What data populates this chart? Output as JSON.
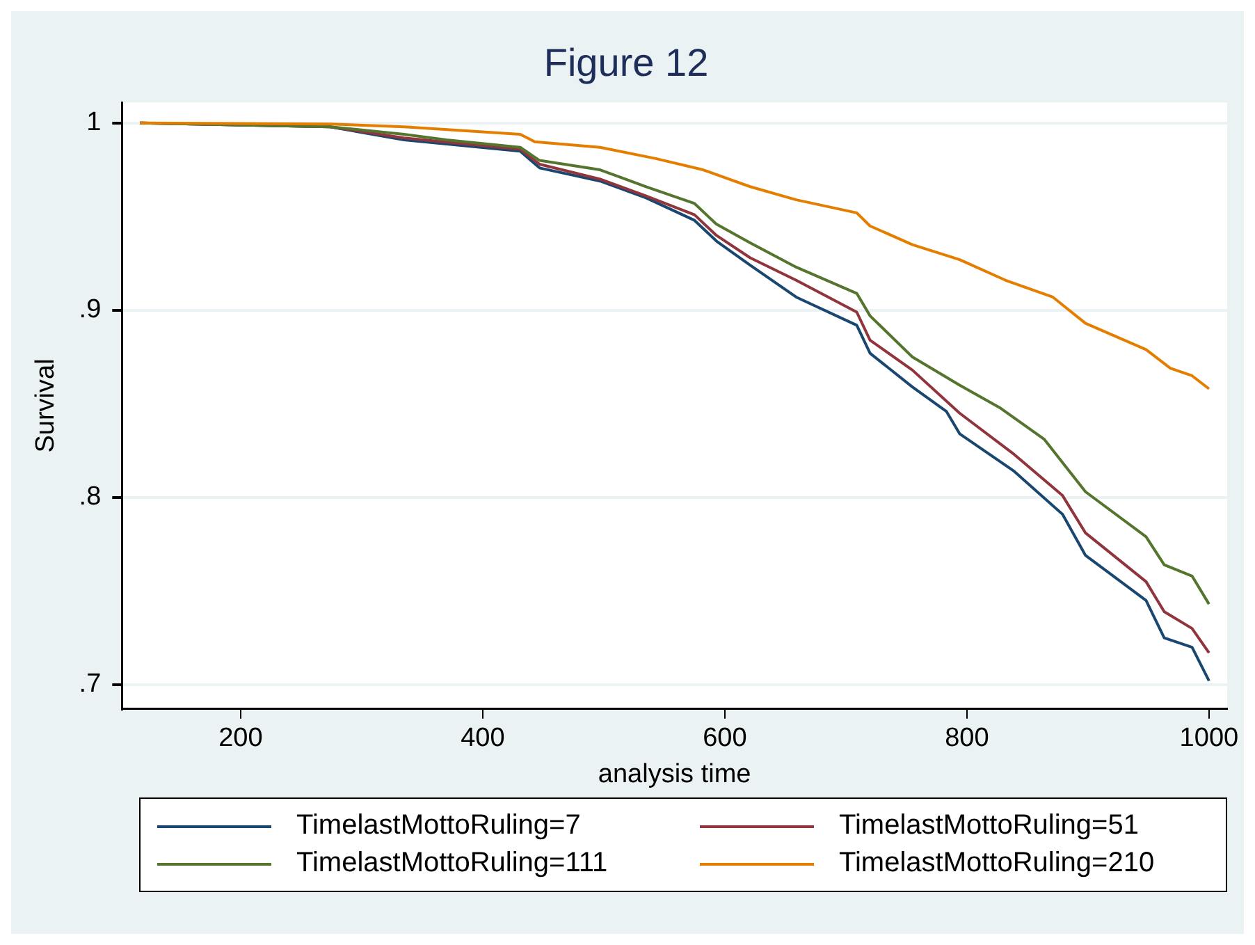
{
  "chart_data": {
    "type": "line",
    "title": "Figure 12",
    "xlabel": "analysis time",
    "ylabel": "Survival",
    "xlim": [
      102,
      1015
    ],
    "xticks": [
      200,
      400,
      600,
      800,
      1000
    ],
    "ylim": [
      0.687,
      1.011
    ],
    "yticks": [
      {
        "value": 1,
        "label": "1"
      },
      {
        "value": 0.9,
        "label": ".9"
      },
      {
        "value": 0.8,
        "label": ".8"
      },
      {
        "value": 0.7,
        "label": ".7"
      }
    ],
    "grid": "y",
    "legend": "bottom",
    "marker": "none",
    "line_style": "solid",
    "series": [
      {
        "name": "TimelastMottoRuling=7",
        "color": "#1a476f",
        "x": [
          117,
          274,
          335,
          431,
          447,
          497,
          535,
          575,
          593,
          621,
          659,
          709,
          720,
          755,
          783,
          794,
          839,
          879,
          898,
          948,
          963,
          986,
          1000
        ],
        "values": [
          1.0,
          0.998,
          0.991,
          0.985,
          0.976,
          0.969,
          0.96,
          0.948,
          0.937,
          0.924,
          0.907,
          0.892,
          0.877,
          0.859,
          0.846,
          0.834,
          0.814,
          0.791,
          0.769,
          0.745,
          0.725,
          0.72,
          0.702
        ]
      },
      {
        "name": "TimelastMottoRuling=51",
        "color": "#90353b",
        "x": [
          117,
          274,
          335,
          431,
          447,
          497,
          535,
          575,
          593,
          621,
          659,
          709,
          720,
          755,
          794,
          839,
          879,
          898,
          948,
          963,
          986,
          1000
        ],
        "values": [
          1.0,
          0.998,
          0.992,
          0.986,
          0.978,
          0.97,
          0.961,
          0.951,
          0.94,
          0.928,
          0.916,
          0.899,
          0.884,
          0.868,
          0.845,
          0.823,
          0.801,
          0.781,
          0.755,
          0.739,
          0.73,
          0.717
        ]
      },
      {
        "name": "TimelastMottoRuling=111",
        "color": "#55752f",
        "x": [
          117,
          274,
          335,
          370,
          431,
          447,
          497,
          535,
          575,
          593,
          621,
          659,
          709,
          720,
          755,
          794,
          827,
          864,
          898,
          948,
          963,
          986,
          1000
        ],
        "values": [
          1.0,
          0.998,
          0.994,
          0.991,
          0.987,
          0.98,
          0.975,
          0.966,
          0.957,
          0.946,
          0.936,
          0.923,
          0.909,
          0.897,
          0.875,
          0.86,
          0.848,
          0.831,
          0.803,
          0.779,
          0.764,
          0.758,
          0.743
        ]
      },
      {
        "name": "TimelastMottoRuling=210",
        "color": "#e37e00",
        "x": [
          117,
          274,
          335,
          431,
          443,
          497,
          543,
          582,
          621,
          659,
          709,
          720,
          755,
          794,
          832,
          871,
          898,
          948,
          968,
          986,
          1000
        ],
        "values": [
          1.0,
          0.9995,
          0.998,
          0.994,
          0.99,
          0.987,
          0.981,
          0.975,
          0.966,
          0.959,
          0.952,
          0.945,
          0.935,
          0.927,
          0.916,
          0.907,
          0.893,
          0.879,
          0.869,
          0.865,
          0.858
        ]
      }
    ]
  }
}
